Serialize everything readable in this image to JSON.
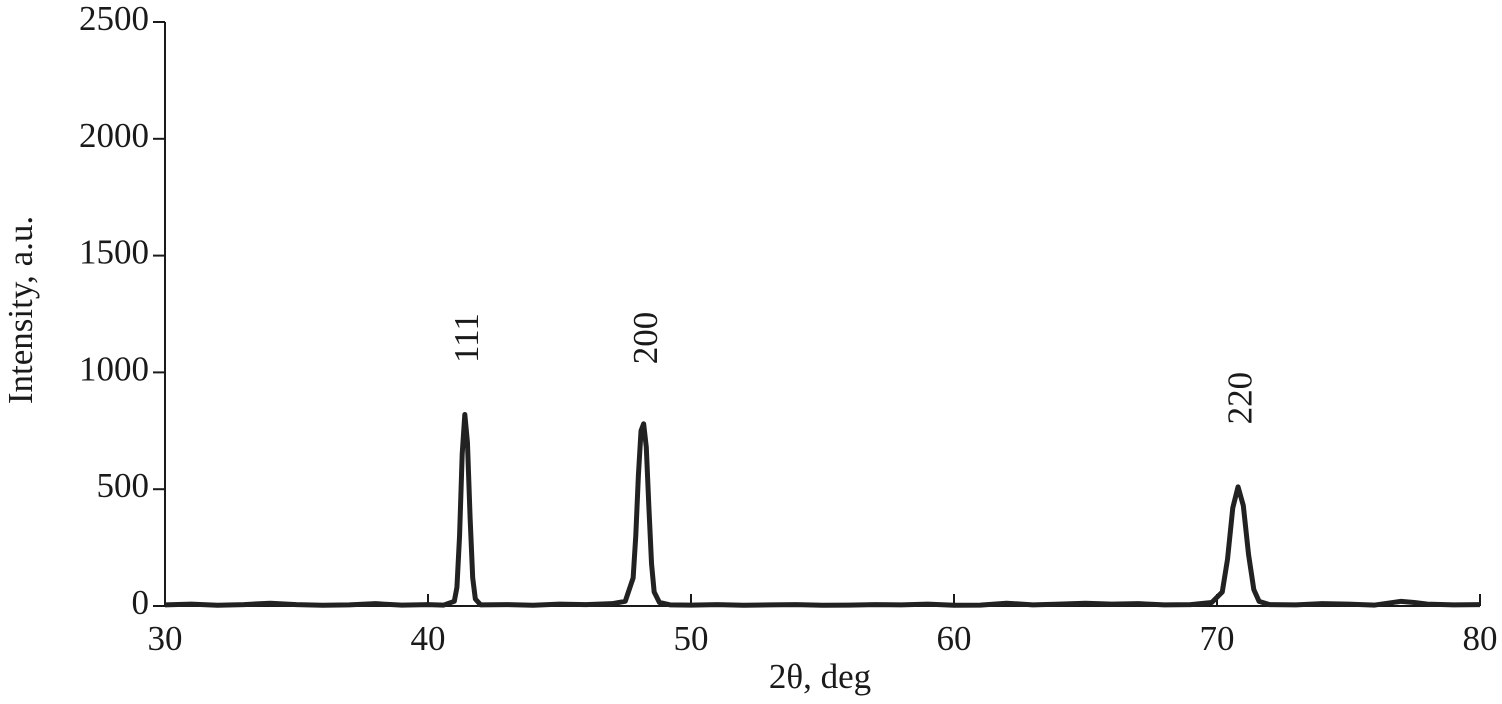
{
  "chart_data": {
    "type": "line",
    "xlabel": "2θ, deg",
    "ylabel": "Intensity, a.u.",
    "x": [
      30,
      31,
      32,
      33,
      34,
      35,
      36,
      37,
      38,
      39,
      40,
      40.6,
      41.0,
      41.1,
      41.2,
      41.3,
      41.4,
      41.5,
      41.6,
      41.7,
      41.8,
      42,
      43,
      44,
      45,
      46,
      47,
      47.5,
      47.8,
      47.9,
      48.0,
      48.1,
      48.2,
      48.3,
      48.4,
      48.5,
      48.6,
      48.8,
      49.2,
      50,
      51,
      52,
      53,
      54,
      55,
      56,
      57,
      58,
      59,
      60,
      61,
      62,
      63,
      64,
      65,
      66,
      67,
      68,
      69,
      69.8,
      70.2,
      70.4,
      70.6,
      70.8,
      71.0,
      71.2,
      71.4,
      71.6,
      72,
      73,
      74,
      75,
      76,
      77,
      77.5,
      78,
      79,
      80
    ],
    "values": [
      5,
      8,
      3,
      6,
      12,
      6,
      3,
      5,
      10,
      4,
      6,
      4,
      20,
      80,
      300,
      650,
      820,
      700,
      380,
      120,
      30,
      5,
      6,
      3,
      8,
      6,
      10,
      20,
      120,
      300,
      560,
      750,
      780,
      680,
      420,
      180,
      60,
      15,
      5,
      4,
      6,
      3,
      5,
      6,
      3,
      4,
      6,
      5,
      8,
      3,
      4,
      12,
      5,
      8,
      12,
      8,
      10,
      5,
      6,
      15,
      60,
      200,
      420,
      510,
      430,
      220,
      70,
      20,
      6,
      5,
      10,
      8,
      4,
      20,
      15,
      8,
      5,
      6
    ],
    "color": "#222222",
    "xlim": [
      30,
      80
    ],
    "xticks": [
      30,
      40,
      50,
      60,
      70,
      80
    ],
    "ylim": [
      0,
      2500
    ],
    "yticks": [
      0,
      500,
      1000,
      1500,
      2000,
      2500
    ],
    "annotations": [
      {
        "text": "111",
        "x": 41.6,
        "y": 1147
      },
      {
        "text": "200",
        "x": 48.4,
        "y": 1147
      },
      {
        "text": "220",
        "x": 71.0,
        "y": 890
      }
    ]
  }
}
